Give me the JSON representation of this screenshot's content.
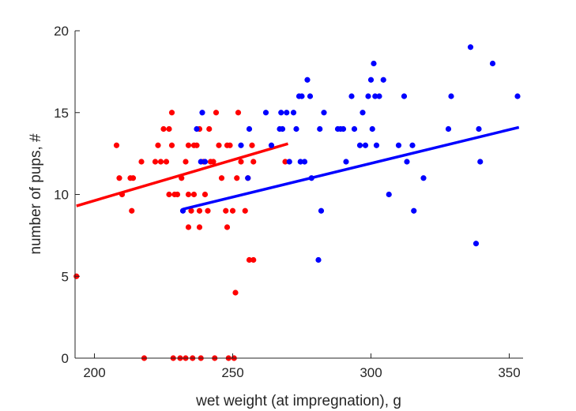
{
  "chart_data": {
    "type": "scatter",
    "title": "",
    "xlabel": "wet weight (at impregnation), g",
    "ylabel": "number of pups, #",
    "xlim": [
      193,
      355
    ],
    "ylim": [
      0,
      20
    ],
    "xticks": [
      200,
      250,
      300,
      350
    ],
    "yticks": [
      0,
      5,
      10,
      15,
      20
    ],
    "grid": false,
    "series": [
      {
        "color": "#ff0000",
        "points": [
          [
            193.5,
            5
          ],
          [
            208,
            13
          ],
          [
            209,
            11
          ],
          [
            210,
            10
          ],
          [
            213,
            11
          ],
          [
            213.5,
            9
          ],
          [
            214,
            11
          ],
          [
            217,
            12
          ],
          [
            218,
            0
          ],
          [
            222,
            12
          ],
          [
            223,
            13
          ],
          [
            224,
            12
          ],
          [
            225,
            14
          ],
          [
            226,
            12
          ],
          [
            227,
            14
          ],
          [
            227,
            10
          ],
          [
            228,
            15
          ],
          [
            228,
            13
          ],
          [
            228.5,
            0
          ],
          [
            229,
            10
          ],
          [
            230,
            10
          ],
          [
            231,
            0
          ],
          [
            231.5,
            11
          ],
          [
            233,
            12
          ],
          [
            233,
            0
          ],
          [
            234,
            13
          ],
          [
            234,
            10
          ],
          [
            234,
            8
          ],
          [
            235,
            9
          ],
          [
            235.5,
            0
          ],
          [
            236,
            13
          ],
          [
            236,
            10
          ],
          [
            237,
            13
          ],
          [
            238,
            8
          ],
          [
            238,
            9
          ],
          [
            238.5,
            0
          ],
          [
            238,
            14
          ],
          [
            239.5,
            12
          ],
          [
            240,
            10
          ],
          [
            241,
            9
          ],
          [
            241.5,
            14
          ],
          [
            242,
            12
          ],
          [
            243,
            12
          ],
          [
            243.5,
            0
          ],
          [
            244,
            15
          ],
          [
            245,
            13
          ],
          [
            246,
            11
          ],
          [
            247.5,
            9
          ],
          [
            248,
            13
          ],
          [
            248.5,
            0
          ],
          [
            248,
            8
          ],
          [
            249,
            13
          ],
          [
            250,
            9
          ],
          [
            250.5,
            0
          ],
          [
            251,
            4
          ],
          [
            251.5,
            11
          ],
          [
            252,
            15
          ],
          [
            253,
            12
          ],
          [
            254.5,
            9
          ],
          [
            255.5,
            11
          ],
          [
            256,
            6
          ],
          [
            257,
            13
          ],
          [
            257.5,
            12
          ],
          [
            257.5,
            6
          ],
          [
            269,
            12
          ]
        ],
        "fit": [
          [
            193.5,
            9.3
          ],
          [
            270,
            13.1
          ]
        ]
      },
      {
        "color": "#0000ff",
        "points": [
          [
            232,
            9
          ],
          [
            237,
            14
          ],
          [
            238.5,
            12
          ],
          [
            239,
            15
          ],
          [
            240,
            12
          ],
          [
            253,
            13
          ],
          [
            255.5,
            11
          ],
          [
            256,
            14
          ],
          [
            262,
            15
          ],
          [
            264,
            13
          ],
          [
            267,
            14
          ],
          [
            267.5,
            15
          ],
          [
            268,
            14
          ],
          [
            269.5,
            15
          ],
          [
            270.5,
            12
          ],
          [
            272,
            15
          ],
          [
            273,
            14
          ],
          [
            274,
            16
          ],
          [
            274.5,
            12
          ],
          [
            275,
            16
          ],
          [
            276,
            12
          ],
          [
            277,
            17
          ],
          [
            278,
            16
          ],
          [
            278.5,
            11
          ],
          [
            281,
            6
          ],
          [
            281.5,
            14
          ],
          [
            282,
            9
          ],
          [
            283,
            15
          ],
          [
            288,
            14
          ],
          [
            289,
            14
          ],
          [
            290,
            14
          ],
          [
            291,
            12
          ],
          [
            293,
            16
          ],
          [
            294,
            14
          ],
          [
            296,
            13
          ],
          [
            297,
            15
          ],
          [
            298,
            13
          ],
          [
            299,
            16
          ],
          [
            300,
            17
          ],
          [
            300.5,
            14
          ],
          [
            301,
            18
          ],
          [
            301.5,
            16
          ],
          [
            302,
            13
          ],
          [
            303,
            16
          ],
          [
            304.5,
            17
          ],
          [
            306.5,
            10
          ],
          [
            310,
            13
          ],
          [
            312,
            16
          ],
          [
            313,
            12
          ],
          [
            315,
            13
          ],
          [
            315.5,
            9
          ],
          [
            319,
            11
          ],
          [
            328,
            14
          ],
          [
            329,
            16
          ],
          [
            336,
            19
          ],
          [
            338,
            7
          ],
          [
            339,
            14
          ],
          [
            339.5,
            12
          ],
          [
            344,
            18
          ],
          [
            353,
            16
          ]
        ],
        "fit": [
          [
            232,
            9.1
          ],
          [
            353.5,
            14.1
          ]
        ]
      }
    ]
  }
}
